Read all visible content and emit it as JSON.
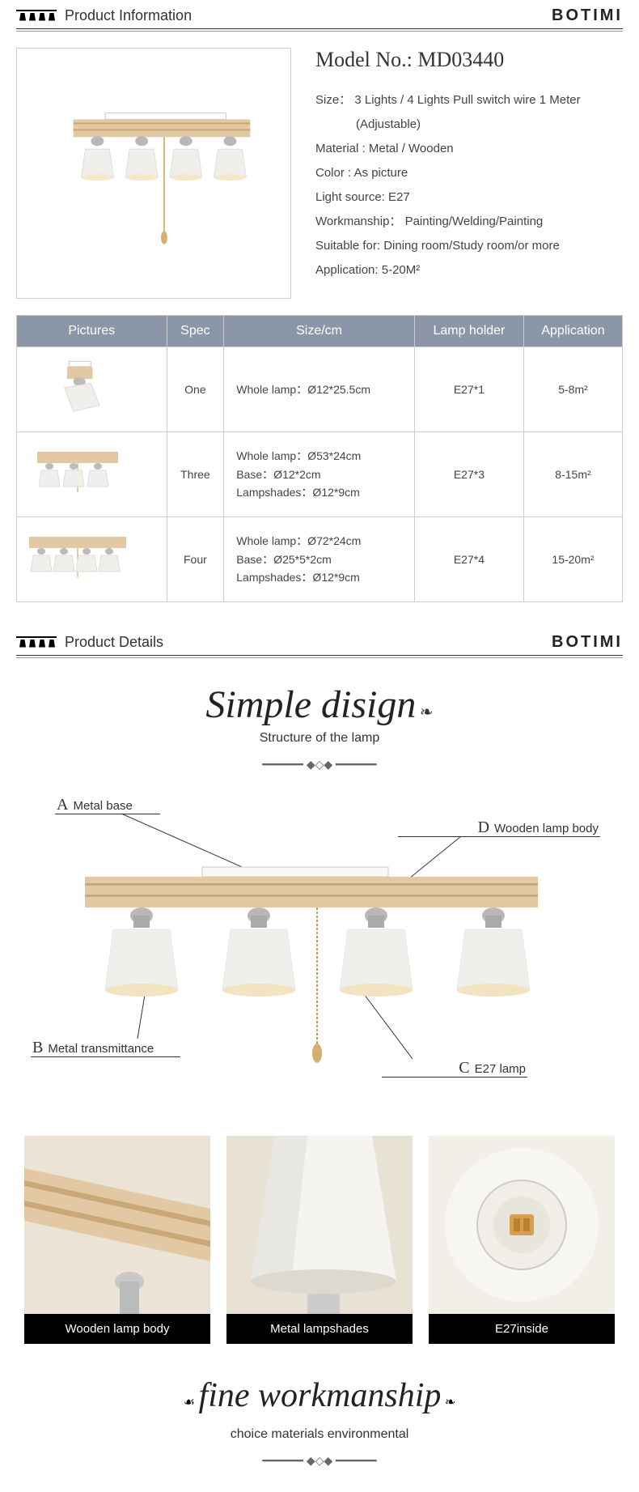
{
  "brand": "BOTIMI",
  "sections": {
    "info_title": "Product Information",
    "details_title": "Product Details"
  },
  "model": {
    "label": "Model No.:",
    "value": "MD03440"
  },
  "specs": [
    {
      "label": "Size：",
      "value": "3 Lights / 4 Lights Pull switch wire 1 Meter"
    },
    {
      "label": "",
      "value": "(Adjustable)"
    },
    {
      "label": "Material :",
      "value": "Metal  / Wooden"
    },
    {
      "label": "Color :",
      "value": "As picture"
    },
    {
      "label": "Light source:",
      "value": "E27"
    },
    {
      "label": "Workmanship：",
      "value": "Painting/Welding/Painting"
    },
    {
      "label": "Suitable for:",
      "value": "Dining room/Study room/or more"
    },
    {
      "label": "Application:",
      "value": "5-20M²"
    }
  ],
  "table": {
    "headers": [
      "Pictures",
      "Spec",
      "Size/cm",
      "Lamp holder",
      "Application"
    ],
    "rows": [
      {
        "spec": "One",
        "size": "Whole lamp：Ø12*25.5cm",
        "holder": "E27*1",
        "app": "5-8m²",
        "lamps": 1
      },
      {
        "spec": "Three",
        "size": "Whole lamp：Ø53*24cm\nBase：Ø12*2cm\nLampshades：Ø12*9cm",
        "holder": "E27*3",
        "app": "8-15m²",
        "lamps": 3
      },
      {
        "spec": "Four",
        "size": "Whole lamp：Ø72*24cm\nBase：Ø25*5*2cm\nLampshades：Ø12*9cm",
        "holder": "E27*4",
        "app": "15-20m²",
        "lamps": 4
      }
    ]
  },
  "design": {
    "script_title": "Simple disign",
    "subtitle": "Structure of the lamp",
    "labels": {
      "A": "Metal base",
      "B": "Metal transmittance",
      "C": "E27 lamp",
      "D": "Wooden  lamp body"
    }
  },
  "detail_photos": [
    {
      "caption": "Wooden lamp body"
    },
    {
      "caption": "Metal lampshades"
    },
    {
      "caption": "E27inside"
    }
  ],
  "workmanship": {
    "script_title": "fine workmanship",
    "subtitle": "choice materials environmental"
  },
  "colors": {
    "header_bg": "#8b97a8",
    "wood_light": "#e5cda8",
    "wood_dark": "#d4b896",
    "shade_color": "#f0efec",
    "metal": "#b8b8b8"
  }
}
